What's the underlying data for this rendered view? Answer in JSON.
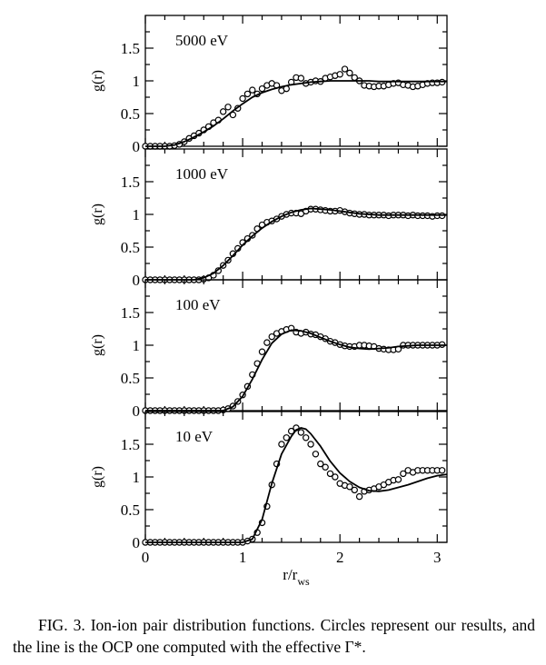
{
  "chart_data": [
    {
      "type": "scatter",
      "title": "5000 eV",
      "ylabel": "g(r)",
      "xlabel": "",
      "xlim": [
        0,
        3.1
      ],
      "ylim": [
        0,
        2
      ],
      "yticks": [
        "0",
        "0.5",
        "1",
        "1.5"
      ],
      "grid": false,
      "series": [
        {
          "kind": "points",
          "x": [
            0.0,
            0.05,
            0.1,
            0.15,
            0.2,
            0.25,
            0.3,
            0.35,
            0.4,
            0.45,
            0.5,
            0.55,
            0.6,
            0.65,
            0.7,
            0.75,
            0.8,
            0.85,
            0.9,
            0.95,
            1.0,
            1.05,
            1.1,
            1.15,
            1.2,
            1.25,
            1.3,
            1.35,
            1.4,
            1.45,
            1.5,
            1.55,
            1.6,
            1.65,
            1.7,
            1.75,
            1.8,
            1.85,
            1.9,
            1.95,
            2.0,
            2.05,
            2.1,
            2.15,
            2.2,
            2.25,
            2.3,
            2.35,
            2.4,
            2.45,
            2.5,
            2.55,
            2.6,
            2.65,
            2.7,
            2.75,
            2.8,
            2.85,
            2.9,
            2.95,
            3.0,
            3.05
          ],
          "y": [
            0,
            0,
            0,
            0,
            0,
            0,
            0.01,
            0.03,
            0.07,
            0.12,
            0.16,
            0.2,
            0.25,
            0.3,
            0.36,
            0.4,
            0.53,
            0.6,
            0.48,
            0.58,
            0.73,
            0.8,
            0.86,
            0.8,
            0.88,
            0.93,
            0.96,
            0.93,
            0.85,
            0.88,
            0.98,
            1.05,
            1.04,
            0.96,
            0.98,
            1.0,
            0.99,
            1.04,
            1.06,
            1.08,
            1.1,
            1.18,
            1.12,
            1.05,
            1.0,
            0.93,
            0.92,
            0.91,
            0.92,
            0.92,
            0.94,
            0.96,
            0.97,
            0.94,
            0.93,
            0.91,
            0.92,
            0.94,
            0.96,
            0.97,
            0.97,
            0.98
          ]
        },
        {
          "kind": "line",
          "x": [
            0,
            0.2,
            0.3,
            0.4,
            0.5,
            0.6,
            0.7,
            0.8,
            0.9,
            1.0,
            1.1,
            1.2,
            1.3,
            1.4,
            1.5,
            1.6,
            1.7,
            1.8,
            1.9,
            2.0,
            2.1,
            2.2,
            2.3,
            2.4,
            2.5,
            2.6,
            2.7,
            2.8,
            2.9,
            3.0,
            3.1
          ],
          "y": [
            0,
            0,
            0.02,
            0.07,
            0.14,
            0.22,
            0.31,
            0.42,
            0.54,
            0.65,
            0.75,
            0.82,
            0.87,
            0.91,
            0.94,
            0.96,
            0.98,
            0.99,
            1.0,
            1.0,
            1.0,
            1.0,
            1.0,
            0.99,
            0.99,
            0.99,
            0.99,
            0.99,
            0.99,
            0.99,
            0.99
          ]
        }
      ]
    },
    {
      "type": "scatter",
      "title": "1000 eV",
      "ylabel": "g(r)",
      "xlabel": "",
      "xlim": [
        0,
        3.1
      ],
      "ylim": [
        0,
        2
      ],
      "yticks": [
        "0",
        "0.5",
        "1",
        "1.5"
      ],
      "grid": false,
      "series": [
        {
          "kind": "points",
          "x": [
            0.0,
            0.05,
            0.1,
            0.15,
            0.2,
            0.25,
            0.3,
            0.35,
            0.4,
            0.45,
            0.5,
            0.55,
            0.6,
            0.65,
            0.7,
            0.75,
            0.8,
            0.85,
            0.9,
            0.95,
            1.0,
            1.05,
            1.1,
            1.15,
            1.2,
            1.25,
            1.3,
            1.35,
            1.4,
            1.45,
            1.5,
            1.55,
            1.6,
            1.65,
            1.7,
            1.75,
            1.8,
            1.85,
            1.9,
            1.95,
            2.0,
            2.05,
            2.1,
            2.15,
            2.2,
            2.25,
            2.3,
            2.35,
            2.4,
            2.45,
            2.5,
            2.55,
            2.6,
            2.65,
            2.7,
            2.75,
            2.8,
            2.85,
            2.9,
            2.95,
            3.0,
            3.05
          ],
          "y": [
            0,
            0,
            0,
            0,
            0,
            0,
            0,
            0,
            0,
            0,
            0,
            0,
            0.01,
            0.03,
            0.07,
            0.14,
            0.22,
            0.3,
            0.4,
            0.48,
            0.57,
            0.63,
            0.68,
            0.78,
            0.84,
            0.88,
            0.9,
            0.93,
            0.97,
            1.0,
            1.02,
            1.02,
            1.01,
            1.05,
            1.08,
            1.08,
            1.07,
            1.06,
            1.05,
            1.05,
            1.06,
            1.04,
            1.02,
            1.01,
            1.0,
            1.0,
            0.99,
            0.99,
            0.99,
            0.99,
            0.98,
            0.99,
            0.99,
            0.99,
            0.98,
            0.99,
            0.98,
            0.98,
            0.98,
            0.97,
            0.98,
            0.98
          ]
        },
        {
          "kind": "line",
          "x": [
            0,
            0.5,
            0.6,
            0.7,
            0.8,
            0.9,
            1.0,
            1.1,
            1.2,
            1.3,
            1.4,
            1.5,
            1.6,
            1.7,
            1.8,
            1.9,
            2.0,
            2.1,
            2.2,
            2.3,
            2.4,
            2.5,
            2.6,
            2.7,
            2.8,
            2.9,
            3.0,
            3.1
          ],
          "y": [
            0,
            0,
            0.03,
            0.1,
            0.22,
            0.37,
            0.53,
            0.67,
            0.79,
            0.89,
            0.97,
            1.03,
            1.07,
            1.09,
            1.08,
            1.07,
            1.05,
            1.03,
            1.01,
            1.0,
            0.99,
            0.99,
            0.99,
            0.99,
            0.99,
            0.99,
            0.99,
            0.99
          ]
        }
      ]
    },
    {
      "type": "scatter",
      "title": "100 eV",
      "ylabel": "g(r)",
      "xlabel": "",
      "xlim": [
        0,
        3.1
      ],
      "ylim": [
        0,
        2
      ],
      "yticks": [
        "0",
        "0.5",
        "1",
        "1.5"
      ],
      "grid": false,
      "series": [
        {
          "kind": "points",
          "x": [
            0.0,
            0.05,
            0.1,
            0.15,
            0.2,
            0.25,
            0.3,
            0.35,
            0.4,
            0.45,
            0.5,
            0.55,
            0.6,
            0.65,
            0.7,
            0.75,
            0.8,
            0.85,
            0.9,
            0.95,
            1.0,
            1.05,
            1.1,
            1.15,
            1.2,
            1.25,
            1.3,
            1.35,
            1.4,
            1.45,
            1.5,
            1.55,
            1.6,
            1.65,
            1.7,
            1.75,
            1.8,
            1.85,
            1.9,
            1.95,
            2.0,
            2.05,
            2.1,
            2.15,
            2.2,
            2.25,
            2.3,
            2.35,
            2.4,
            2.45,
            2.5,
            2.55,
            2.6,
            2.65,
            2.7,
            2.75,
            2.8,
            2.85,
            2.9,
            2.95,
            3.0,
            3.05
          ],
          "y": [
            0,
            0,
            0,
            0,
            0,
            0,
            0,
            0,
            0,
            0,
            0,
            0,
            0,
            0,
            0,
            0,
            0.01,
            0.03,
            0.07,
            0.14,
            0.24,
            0.37,
            0.55,
            0.72,
            0.9,
            1.04,
            1.13,
            1.18,
            1.21,
            1.24,
            1.26,
            1.2,
            1.18,
            1.2,
            1.17,
            1.16,
            1.13,
            1.1,
            1.06,
            1.04,
            1.01,
            0.99,
            0.98,
            0.98,
            1.0,
            1.0,
            0.99,
            0.98,
            0.95,
            0.94,
            0.93,
            0.93,
            0.94,
            1.0,
            1.0,
            1.0,
            1.0,
            1.0,
            1.0,
            1.0,
            1.0,
            1.01
          ]
        },
        {
          "kind": "line",
          "x": [
            0,
            0.8,
            0.9,
            1.0,
            1.1,
            1.2,
            1.3,
            1.4,
            1.5,
            1.6,
            1.7,
            1.8,
            1.9,
            2.0,
            2.1,
            2.2,
            2.3,
            2.4,
            2.5,
            2.6,
            2.7,
            2.8,
            2.9,
            3.0,
            3.1
          ],
          "y": [
            0,
            0,
            0.06,
            0.22,
            0.48,
            0.78,
            1.03,
            1.17,
            1.23,
            1.22,
            1.18,
            1.12,
            1.06,
            1.01,
            0.97,
            0.95,
            0.94,
            0.95,
            0.96,
            0.98,
            0.99,
            1.0,
            1.0,
            1.0,
            1.0
          ]
        }
      ]
    },
    {
      "type": "scatter",
      "title": "10 eV",
      "ylabel": "g(r)",
      "xlabel": "r/r_ws",
      "xlim": [
        0,
        3.1
      ],
      "ylim": [
        0,
        2
      ],
      "yticks": [
        "0",
        "0.5",
        "1",
        "1.5"
      ],
      "xticks": [
        "0",
        "1",
        "2",
        "3"
      ],
      "grid": false,
      "series": [
        {
          "kind": "points",
          "x": [
            0.0,
            0.05,
            0.1,
            0.15,
            0.2,
            0.25,
            0.3,
            0.35,
            0.4,
            0.45,
            0.5,
            0.55,
            0.6,
            0.65,
            0.7,
            0.75,
            0.8,
            0.85,
            0.9,
            0.95,
            1.0,
            1.05,
            1.1,
            1.15,
            1.2,
            1.25,
            1.3,
            1.35,
            1.4,
            1.45,
            1.5,
            1.55,
            1.6,
            1.65,
            1.7,
            1.75,
            1.8,
            1.85,
            1.9,
            1.95,
            2.0,
            2.05,
            2.1,
            2.15,
            2.2,
            2.25,
            2.3,
            2.35,
            2.4,
            2.45,
            2.5,
            2.55,
            2.6,
            2.65,
            2.7,
            2.75,
            2.8,
            2.85,
            2.9,
            2.95,
            3.0,
            3.05
          ],
          "y": [
            0,
            0,
            0,
            0,
            0,
            0,
            0,
            0,
            0,
            0,
            0,
            0,
            0,
            0,
            0,
            0,
            0,
            0,
            0,
            0,
            0,
            0.02,
            0.05,
            0.15,
            0.3,
            0.55,
            0.88,
            1.2,
            1.5,
            1.6,
            1.7,
            1.75,
            1.68,
            1.6,
            1.5,
            1.35,
            1.2,
            1.15,
            1.05,
            1.0,
            0.9,
            0.87,
            0.85,
            0.8,
            0.7,
            0.78,
            0.8,
            0.82,
            0.85,
            0.88,
            0.92,
            0.95,
            0.96,
            1.05,
            1.1,
            1.07,
            1.1,
            1.1,
            1.1,
            1.1,
            1.1,
            1.1
          ]
        },
        {
          "kind": "line",
          "x": [
            0,
            1.0,
            1.1,
            1.2,
            1.3,
            1.4,
            1.5,
            1.55,
            1.6,
            1.65,
            1.7,
            1.8,
            1.9,
            2.0,
            2.1,
            2.2,
            2.3,
            2.4,
            2.5,
            2.6,
            2.7,
            2.8,
            2.9,
            3.0,
            3.1
          ],
          "y": [
            0,
            0,
            0.05,
            0.35,
            0.9,
            1.35,
            1.62,
            1.72,
            1.75,
            1.73,
            1.66,
            1.47,
            1.24,
            1.06,
            0.93,
            0.84,
            0.79,
            0.78,
            0.8,
            0.84,
            0.88,
            0.93,
            0.98,
            1.02,
            1.04
          ]
        }
      ]
    }
  ],
  "axis": {
    "xlabel_main": "r/r",
    "xlabel_sub": "ws"
  },
  "caption": {
    "text": "FIG. 3. Ion-ion pair distribution functions. Circles represent our results, and the line is the OCP one computed with the effective Γ*."
  }
}
